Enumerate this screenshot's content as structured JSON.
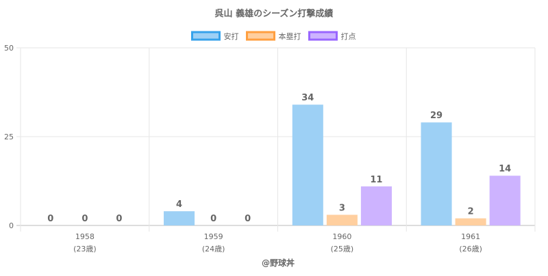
{
  "chart_data": {
    "type": "bar",
    "title": "呉山 義雄のシーズン打撃成績",
    "categories": [
      "1958",
      "1959",
      "1960",
      "1961"
    ],
    "sublabels": [
      "(23歳)",
      "(24歳)",
      "(25歳)",
      "(26歳)"
    ],
    "series": [
      {
        "name": "安打",
        "values": [
          0,
          4,
          34,
          29
        ],
        "fill": "#9dd0f5",
        "stroke": "#36a2eb"
      },
      {
        "name": "本塁打",
        "values": [
          0,
          0,
          3,
          2
        ],
        "fill": "#ffcf9f",
        "stroke": "#ff9f40"
      },
      {
        "name": "打点",
        "values": [
          0,
          0,
          11,
          14
        ],
        "fill": "#cdb3ff",
        "stroke": "#9966ff"
      }
    ],
    "ylim": [
      0,
      50
    ],
    "yticks": [
      0,
      25,
      50
    ],
    "grid": true,
    "legend_position": "top",
    "footer": "@野球丼"
  }
}
